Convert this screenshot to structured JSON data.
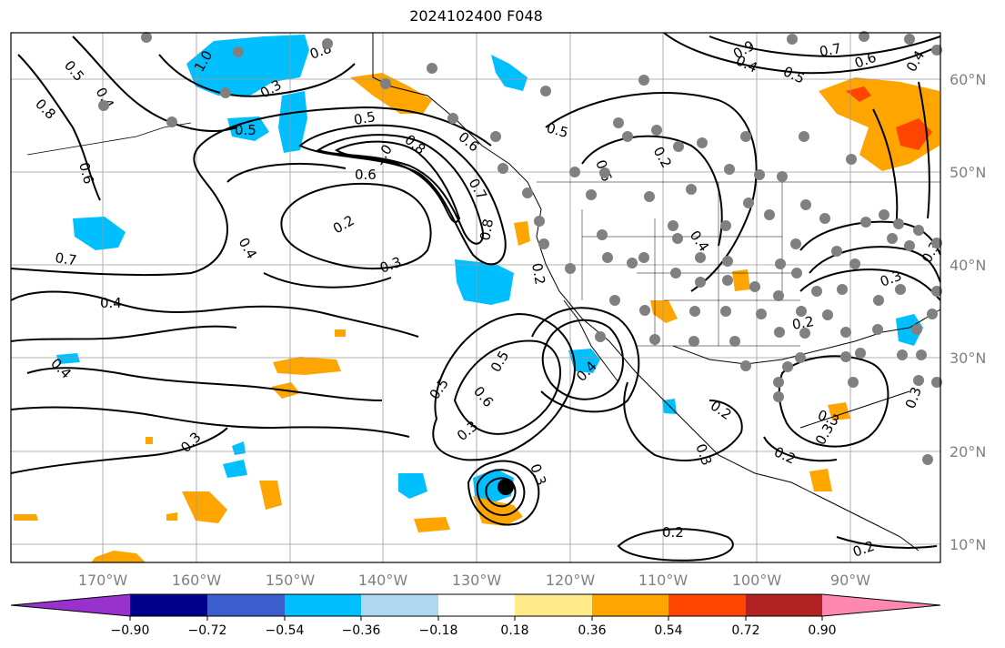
{
  "title": "2024102400 F048",
  "map": {
    "lon_ticks": [
      "170°W",
      "160°W",
      "150°W",
      "140°W",
      "130°W",
      "120°W",
      "110°W",
      "100°W",
      "90°W"
    ],
    "lat_ticks": [
      "60°N",
      "50°N",
      "40°N",
      "30°N",
      "20°N",
      "10°N"
    ],
    "contour_labels": [
      "0.5",
      "0.4",
      "0.8",
      "0.6",
      "1.0",
      "0.8",
      "0.5",
      "0.3",
      "0.5",
      "0.6",
      "1.0",
      "0.8",
      "0.6",
      "0.7",
      "0.2",
      "0.4",
      "0.3",
      "0.4",
      "0.8",
      "0.7",
      "0.4",
      "0.3",
      "0.2",
      "0.5",
      "0.6",
      "0.9",
      "0.2",
      "0.4",
      "0.5",
      "0.7",
      "0.6",
      "0.4",
      "0.4",
      "0.5",
      "0.6",
      "0.5",
      "0.4",
      "0.3",
      "0.3",
      "0.2",
      "0.3",
      "0.2",
      "0.2",
      "0.3",
      "0.2",
      "0.3",
      "0.2",
      "0.3",
      "0.3",
      "0.3"
    ],
    "shade_colors": {
      "cyan": "#00bfff",
      "orange": "#ffa500",
      "red_orange": "#ff4500",
      "light_blue": "#add8e6"
    },
    "station_color": "#808080"
  },
  "colorbar": {
    "labels": [
      "−0.90",
      "−0.72",
      "−0.54",
      "−0.36",
      "−0.18",
      "0.18",
      "0.36",
      "0.54",
      "0.72",
      "0.90"
    ],
    "colors": [
      "#9932cc",
      "#00008b",
      "#3a5fcd",
      "#00bfff",
      "#add8f0",
      "#ffffff",
      "#ffeb8a",
      "#ffa500",
      "#ff4500",
      "#b22222",
      "#ff88b0"
    ]
  }
}
